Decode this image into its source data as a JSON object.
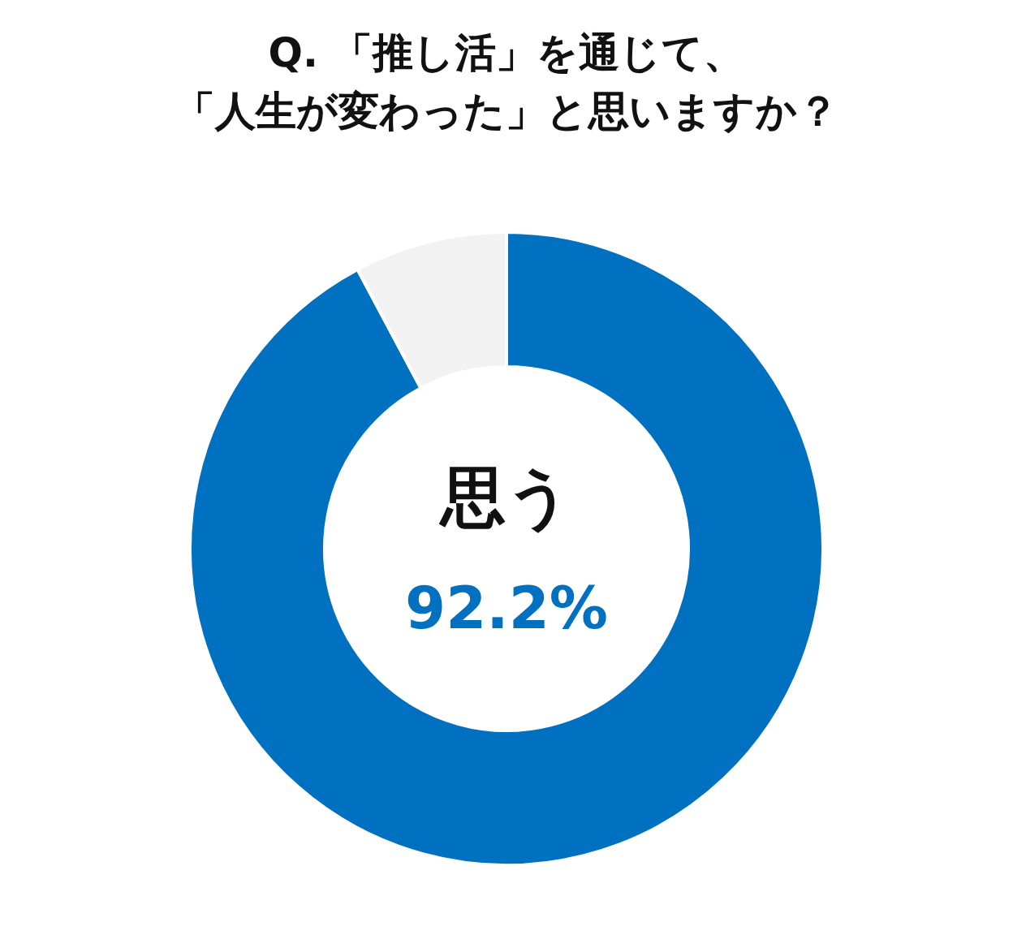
{
  "chart_data": {
    "type": "donut",
    "title": [
      "Q. 「推し活」を通じて、",
      "「人生が変わった」と思いますか？"
    ],
    "categories": [
      "思う",
      null
    ],
    "values": [
      92.2,
      7.8
    ],
    "colors": [
      "#0070c0",
      "#f2f2f2"
    ],
    "value_labels": [
      "92.2%",
      null
    ]
  }
}
